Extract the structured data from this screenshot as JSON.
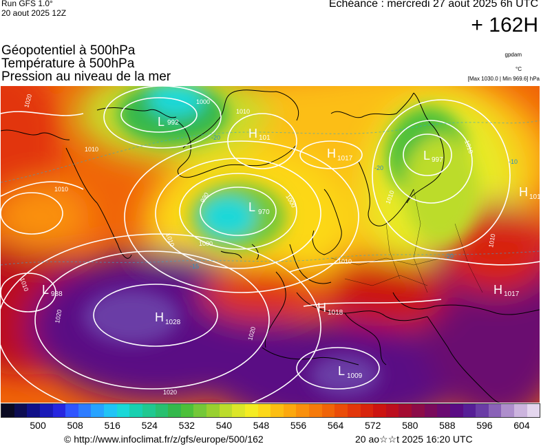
{
  "header": {
    "run": "Run GFS 1.0°",
    "run_date": "20 aout 2025 12Z",
    "valid": "Echéance : mercredi 27 aout 2025 6h UTC",
    "lead": "+ 162H"
  },
  "titles": [
    "Géopotentiel à 500hPa",
    "Température à 500hPa",
    "Pression au niveau de la mer"
  ],
  "units": {
    "geopotential": "gpdam",
    "temperature": "°C",
    "pressure_range": "[Max 1030.0 | Min 969.6] hPa"
  },
  "pressure_centers": [
    {
      "type": "L",
      "value": "988"
    },
    {
      "type": "L",
      "value": "992"
    },
    {
      "type": "H",
      "value": "101"
    },
    {
      "type": "H",
      "value": "1017"
    },
    {
      "type": "L",
      "value": "970"
    },
    {
      "type": "L",
      "value": "997"
    },
    {
      "type": "H",
      "value": "101"
    },
    {
      "type": "H",
      "value": "1028"
    },
    {
      "type": "H",
      "value": "1018"
    },
    {
      "type": "H",
      "value": "1017"
    },
    {
      "type": "L",
      "value": "1009"
    }
  ],
  "isobar_labels": [
    "1020",
    "1010",
    "1000",
    "1010",
    "990",
    "1000",
    "1010",
    "1000",
    "1010",
    "1010",
    "1010",
    "1010",
    "1020",
    "1020",
    "1020",
    "1010",
    "1010"
  ],
  "temperature_labels": [
    "-20",
    "-20",
    "-10",
    "-15",
    "-20"
  ],
  "legend": {
    "ticks": [
      "500",
      "508",
      "516",
      "524",
      "532",
      "540",
      "548",
      "556",
      "564",
      "572",
      "580",
      "588",
      "596",
      "604"
    ],
    "colors": [
      "#0a0a22",
      "#0d0d52",
      "#101088",
      "#1a1ab8",
      "#2626e0",
      "#2f55ff",
      "#2d7cff",
      "#27a3ff",
      "#20c4f6",
      "#1ad8d8",
      "#18d0b0",
      "#20c890",
      "#28c070",
      "#34b84c",
      "#4cc03a",
      "#74c838",
      "#98d030",
      "#bcdc2c",
      "#dce628",
      "#f4ec22",
      "#fcd818",
      "#fcbe12",
      "#fca80e",
      "#fa900c",
      "#f67a0a",
      "#f06408",
      "#ea4c08",
      "#e2360a",
      "#d8240c",
      "#cc1410",
      "#bc0e1e",
      "#a40c32",
      "#8c0c48",
      "#7a0a5c",
      "#6a0a70",
      "#5a0c84",
      "#561e96",
      "#6a3ca6",
      "#8a62b8",
      "#ae8ecc",
      "#ccb4de",
      "#e4d6ee"
    ]
  },
  "footer": {
    "copyright": "© http://www.infoclimat.fr/z/gfs/europe/500/162",
    "generated": "20 ao☆☆t 2025 16:20 UTC"
  }
}
